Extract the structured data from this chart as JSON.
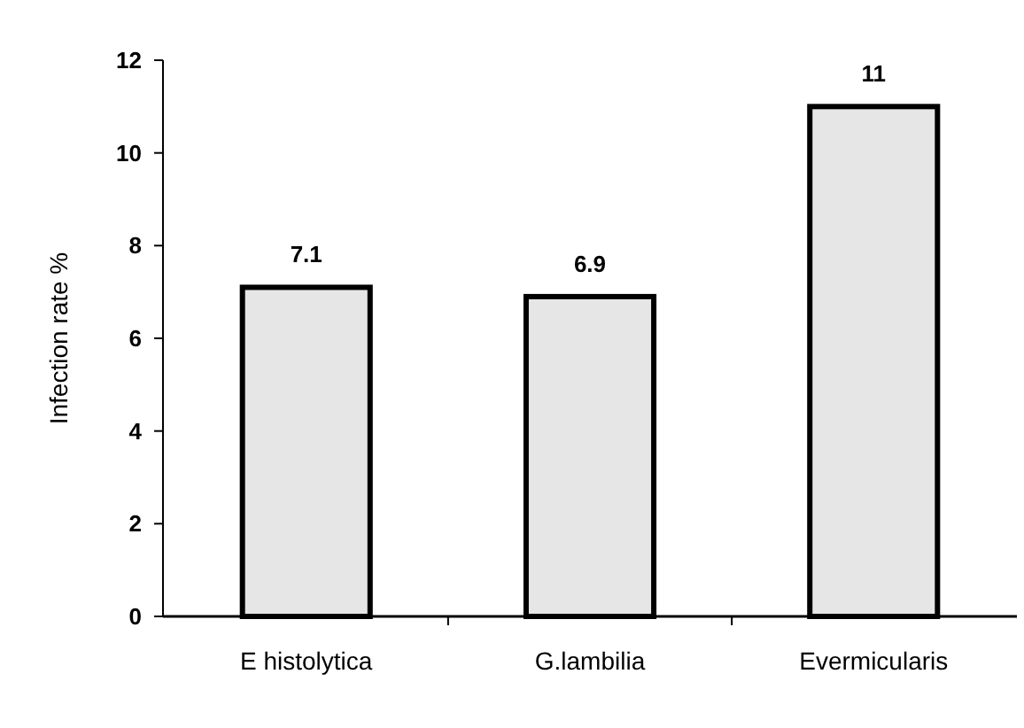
{
  "chart_data": {
    "type": "bar",
    "ylabel": "Infection rate %",
    "categories": [
      "E histolytica",
      "G.lambilia",
      "Evermicularis"
    ],
    "values": [
      7.1,
      6.9,
      11
    ],
    "color": "#e6e6e6",
    "ylim": [
      0,
      12
    ],
    "yticks": [
      0,
      2,
      4,
      6,
      8,
      10,
      12
    ],
    "data_labels": true,
    "grid": false
  }
}
